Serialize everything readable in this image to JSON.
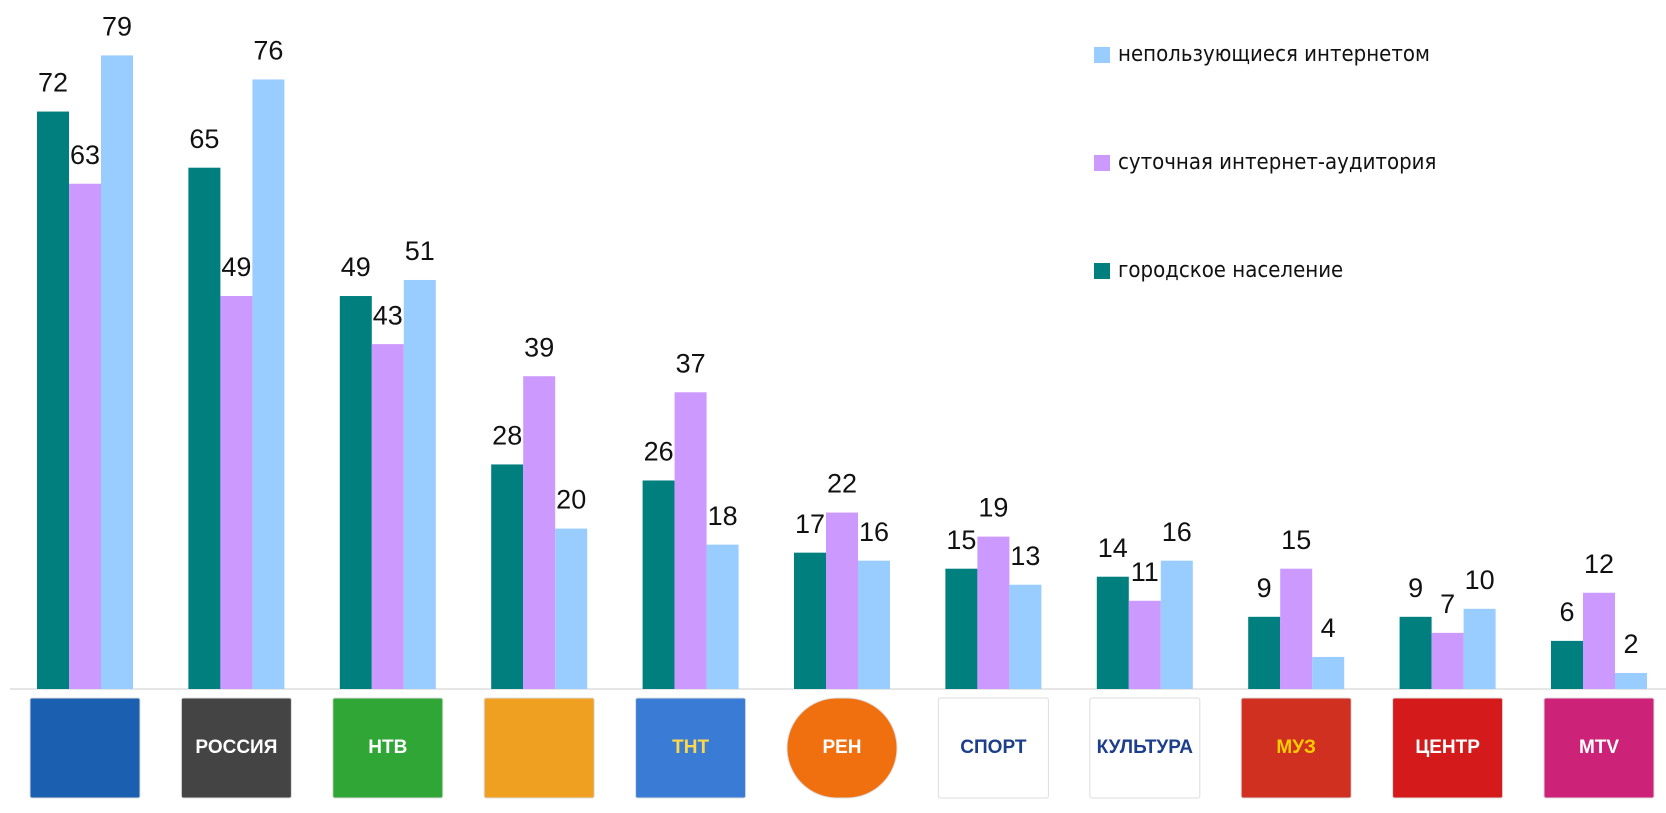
{
  "chart_data": {
    "type": "bar",
    "categories": [
      null,
      "РОССИЯ",
      "НТВ",
      null,
      "ТНТ",
      "РЕН",
      "СПОРТ",
      "КУЛЬТУРА",
      "МУЗ",
      "ЦЕНТР",
      "MTV"
    ],
    "series": [
      {
        "name": "городское население",
        "color": "#007f7f",
        "values": [
          72,
          65,
          49,
          28,
          26,
          17,
          15,
          14,
          9,
          9,
          6
        ]
      },
      {
        "name": "суточная интернет-аудитория",
        "color": "#cc99ff",
        "values": [
          63,
          49,
          43,
          39,
          37,
          22,
          19,
          11,
          15,
          7,
          12
        ]
      },
      {
        "name": "непользующиеся интернетом",
        "color": "#99ccff",
        "values": [
          79,
          76,
          51,
          20,
          18,
          16,
          13,
          16,
          4,
          10,
          2
        ]
      }
    ]
  }
}
